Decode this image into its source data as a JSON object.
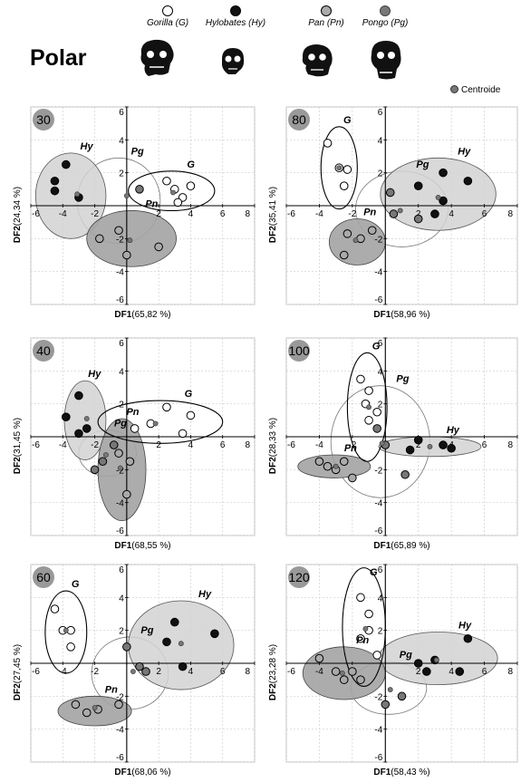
{
  "title": "Polar",
  "legend": {
    "items": [
      {
        "label": "Gorilla (G)",
        "fill": "#ffffff"
      },
      {
        "label": "Hylobates (Hy)",
        "fill": "#111111"
      },
      {
        "label": "Pan (Pn)",
        "fill": "#aaaaaa"
      },
      {
        "label": "Pongo (Pg)",
        "fill": "#777777"
      }
    ],
    "centroid_label": "Centroide"
  },
  "colors": {
    "gorilla": "#ffffff",
    "hylobates": "#111111",
    "pan": "#aaaaaa",
    "pongo": "#777777",
    "hy_ellipse": "#d2d2d2",
    "pn_ellipse": "#a3a3a3",
    "grid": "#cfcfcf"
  },
  "chart_data": [
    {
      "type": "scatter",
      "panel_label": "30",
      "xlim": [
        -6,
        8
      ],
      "ylim": [
        -6,
        6
      ],
      "xticks": [
        "-6",
        "-4",
        "-2",
        "0",
        "2",
        "4",
        "6",
        "8"
      ],
      "yticks": [
        "6",
        "4",
        "2",
        "0",
        "-2",
        "-4",
        "-6"
      ],
      "xlabel": "DF1",
      "xlabel_pct": "(65,82 %)",
      "ylabel": "DF2",
      "ylabel_pct": "(24,34 %)",
      "groups": [
        {
          "label": "Hy",
          "points": [
            [
              -4.5,
              1.5
            ],
            [
              -3.8,
              2.5
            ],
            [
              -3,
              0.5
            ],
            [
              -4.5,
              0.9
            ]
          ]
        },
        {
          "label": "G",
          "points": [
            [
              2.5,
              1.5
            ],
            [
              3,
              1
            ],
            [
              3.5,
              0.5
            ],
            [
              4,
              1.2
            ],
            [
              3.2,
              0.2
            ]
          ]
        },
        {
          "label": "Pn",
          "points": [
            [
              -1.7,
              -2
            ],
            [
              0,
              -3
            ],
            [
              2,
              -2.5
            ],
            [
              -0.5,
              -1.5
            ]
          ]
        },
        {
          "label": "Pg",
          "points": [
            [
              0.8,
              1
            ]
          ]
        }
      ],
      "ellipses": [
        {
          "label": "Hy",
          "center": [
            -3.5,
            0.6
          ],
          "rx": 2.2,
          "ry": 2.6
        },
        {
          "label": "G",
          "center": [
            2.8,
            0.9
          ],
          "rx": 2.7,
          "ry": 1.2
        },
        {
          "label": "Pn",
          "center": [
            0.3,
            -2
          ],
          "rx": 2.8,
          "ry": 1.7
        },
        {
          "label": "Pg",
          "center": [
            -0.5,
            0.3
          ],
          "rx": 2.6,
          "ry": 2.6
        }
      ],
      "centroids": [
        [
          -3.1,
          0.7
        ],
        [
          2.9,
          0.8
        ],
        [
          0.2,
          -2.1
        ],
        [
          0,
          0.6
        ]
      ]
    },
    {
      "type": "scatter",
      "panel_label": "80",
      "xlim": [
        -6,
        8
      ],
      "ylim": [
        -6,
        6
      ],
      "xticks": [
        "-6",
        "-4",
        "-2",
        "0",
        "2",
        "4",
        "6",
        "8"
      ],
      "yticks": [
        "6",
        "4",
        "2",
        "0",
        "-2",
        "-4",
        "-6"
      ],
      "xlabel": "DF1",
      "xlabel_pct": "(58,96 %)",
      "ylabel": "DF2",
      "ylabel_pct": "(35,41 %)",
      "groups": [
        {
          "label": "G",
          "points": [
            [
              -3.5,
              3.8
            ],
            [
              -2.8,
              2.3
            ],
            [
              -2.3,
              2.2
            ],
            [
              -2.5,
              1.2
            ]
          ]
        },
        {
          "label": "Hy",
          "points": [
            [
              2,
              1.2
            ],
            [
              3.5,
              2
            ],
            [
              5,
              1.5
            ],
            [
              3,
              -0.5
            ],
            [
              3.5,
              0.3
            ]
          ]
        },
        {
          "label": "Pn",
          "points": [
            [
              -2.3,
              -1.7
            ],
            [
              -2.5,
              -3
            ],
            [
              -1.5,
              -2
            ],
            [
              -0.8,
              -1.5
            ]
          ]
        },
        {
          "label": "Pg",
          "points": [
            [
              0.5,
              -0.5
            ],
            [
              2,
              -0.8
            ],
            [
              0.3,
              0.8
            ]
          ]
        }
      ],
      "ellipses": [
        {
          "label": "G",
          "center": [
            -2.8,
            2.3
          ],
          "rx": 1.1,
          "ry": 2.5
        },
        {
          "label": "Hy",
          "center": [
            3.2,
            0.7
          ],
          "rx": 3.5,
          "ry": 2.2
        },
        {
          "label": "Pn",
          "center": [
            -1.7,
            -2.2
          ],
          "rx": 1.7,
          "ry": 1.4
        },
        {
          "label": "Pg",
          "center": [
            1,
            -0.2
          ],
          "rx": 2.8,
          "ry": 2.3
        }
      ],
      "centroids": [
        [
          -2.8,
          2.3
        ],
        [
          3.2,
          0.5
        ],
        [
          -1.8,
          -2.1
        ],
        [
          0.9,
          -0.3
        ]
      ]
    },
    {
      "type": "scatter",
      "panel_label": "40",
      "xlim": [
        -6,
        8
      ],
      "ylim": [
        -6,
        6
      ],
      "xticks": [
        "-6",
        "-4",
        "-2",
        "0",
        "2",
        "4",
        "6",
        "8"
      ],
      "yticks": [
        "6",
        "4",
        "2",
        "0",
        "-2",
        "-4",
        "-6"
      ],
      "xlabel": "DF1",
      "xlabel_pct": "(68,55 %)",
      "ylabel": "DF2",
      "ylabel_pct": "(31,45 %)",
      "groups": [
        {
          "label": "Hy",
          "points": [
            [
              -3.8,
              1.2
            ],
            [
              -3,
              2.5
            ],
            [
              -2.5,
              0.5
            ],
            [
              -3,
              0.2
            ]
          ]
        },
        {
          "label": "G",
          "points": [
            [
              2.5,
              1.8
            ],
            [
              4,
              1.3
            ],
            [
              3.5,
              0.2
            ],
            [
              1.5,
              0.8
            ],
            [
              0.5,
              0.5
            ]
          ]
        },
        {
          "label": "Pn",
          "points": [
            [
              0.2,
              -1.5
            ],
            [
              0,
              -3.5
            ],
            [
              -0.5,
              -1
            ]
          ]
        },
        {
          "label": "Pg",
          "points": [
            [
              -1.5,
              -1.5
            ],
            [
              -2,
              -2
            ],
            [
              -0.8,
              -0.5
            ]
          ]
        }
      ],
      "ellipses": [
        {
          "label": "Hy",
          "center": [
            -2.6,
            1
          ],
          "rx": 1.3,
          "ry": 2.4
        },
        {
          "label": "G",
          "center": [
            2.1,
            0.9
          ],
          "rx": 3.9,
          "ry": 1.3
        },
        {
          "label": "Pn",
          "center": [
            -0.3,
            -2
          ],
          "rx": 1.5,
          "ry": 3.1
        },
        {
          "label": "Pg",
          "center": [
            -1.2,
            -1
          ],
          "rx": 1.8,
          "ry": 1.4
        }
      ],
      "centroids": [
        [
          -2.5,
          1.1
        ],
        [
          1.8,
          0.8
        ],
        [
          -0.4,
          -1.9
        ],
        [
          -1.3,
          -1.1
        ]
      ]
    },
    {
      "type": "scatter",
      "panel_label": "100",
      "xlim": [
        -6,
        8
      ],
      "ylim": [
        -6,
        6
      ],
      "xticks": [
        "-6",
        "-4",
        "-2",
        "0",
        "2",
        "4",
        "6",
        "8"
      ],
      "yticks": [
        "6",
        "4",
        "2",
        "0",
        "-2",
        "-4",
        "-6"
      ],
      "xlabel": "DF1",
      "xlabel_pct": "(65,89 %)",
      "ylabel": "DF2",
      "ylabel_pct": "(28,33 %)",
      "groups": [
        {
          "label": "G",
          "points": [
            [
              -1.5,
              3.5
            ],
            [
              -1,
              2.8
            ],
            [
              -1.2,
              2
            ],
            [
              -0.5,
              1.5
            ],
            [
              -1,
              1
            ]
          ]
        },
        {
          "label": "Hy",
          "points": [
            [
              1.5,
              -0.8
            ],
            [
              3.5,
              -0.5
            ],
            [
              4,
              -0.7
            ],
            [
              2,
              -0.2
            ]
          ]
        },
        {
          "label": "Pn",
          "points": [
            [
              -4,
              -1.5
            ],
            [
              -3.5,
              -1.8
            ],
            [
              -3,
              -2
            ],
            [
              -2.5,
              -1.5
            ],
            [
              -2,
              -2.5
            ]
          ]
        },
        {
          "label": "Pg",
          "points": [
            [
              1.2,
              -2.3
            ],
            [
              -0.5,
              0.5
            ],
            [
              0,
              -0.5
            ]
          ]
        }
      ],
      "ellipses": [
        {
          "label": "G",
          "center": [
            -1.1,
            1.8
          ],
          "rx": 1.2,
          "ry": 3.3
        },
        {
          "label": "Hy",
          "center": [
            2.7,
            -0.6
          ],
          "rx": 3.1,
          "ry": 0.6
        },
        {
          "label": "Pn",
          "center": [
            -3.1,
            -1.8
          ],
          "rx": 2.2,
          "ry": 0.7
        },
        {
          "label": "Pg",
          "center": [
            -0.3,
            -0.3
          ],
          "rx": 3,
          "ry": 3.4
        }
      ],
      "centroids": [
        [
          -1,
          1.8
        ],
        [
          2.7,
          -0.6
        ],
        [
          -3,
          -1.8
        ],
        [
          -0.2,
          -0.4
        ]
      ]
    },
    {
      "type": "scatter",
      "panel_label": "60",
      "xlim": [
        -6,
        8
      ],
      "ylim": [
        -6,
        6
      ],
      "xticks": [
        "-6",
        "-4",
        "-2",
        "0",
        "2",
        "4",
        "6",
        "8"
      ],
      "yticks": [
        "6",
        "4",
        "2",
        "0",
        "-2",
        "-4",
        "-6"
      ],
      "xlabel": "DF1",
      "xlabel_pct": "(68,06 %)",
      "ylabel": "DF2",
      "ylabel_pct": "(27,45 %)",
      "groups": [
        {
          "label": "G",
          "points": [
            [
              -4.5,
              3.3
            ],
            [
              -4,
              2
            ],
            [
              -3.5,
              2
            ],
            [
              -3.5,
              1
            ]
          ]
        },
        {
          "label": "Hy",
          "points": [
            [
              3,
              2.5
            ],
            [
              5.5,
              1.8
            ],
            [
              3.5,
              -0.2
            ],
            [
              2.5,
              1.3
            ]
          ]
        },
        {
          "label": "Pn",
          "points": [
            [
              -3.2,
              -2.5
            ],
            [
              -2.5,
              -3
            ],
            [
              -1.8,
              -2.8
            ],
            [
              -0.5,
              -2.5
            ]
          ]
        },
        {
          "label": "Pg",
          "points": [
            [
              0,
              1
            ],
            [
              1.2,
              -0.5
            ],
            [
              0.8,
              -0.2
            ]
          ]
        }
      ],
      "ellipses": [
        {
          "label": "G",
          "center": [
            -3.8,
            1.9
          ],
          "rx": 1.3,
          "ry": 2.5
        },
        {
          "label": "Hy",
          "center": [
            3.4,
            1.1
          ],
          "rx": 3.3,
          "ry": 2.7
        },
        {
          "label": "Pn",
          "center": [
            -2,
            -2.9
          ],
          "rx": 2.3,
          "ry": 0.9
        },
        {
          "label": "Pg",
          "center": [
            0.2,
            -0.6
          ],
          "rx": 2.4,
          "ry": 2.2
        }
      ],
      "centroids": [
        [
          -3.8,
          2
        ],
        [
          3.4,
          1.2
        ],
        [
          -2,
          -2.7
        ],
        [
          0.4,
          -0.5
        ]
      ]
    },
    {
      "type": "scatter",
      "panel_label": "120",
      "xlim": [
        -6,
        8
      ],
      "ylim": [
        -6,
        6
      ],
      "xticks": [
        "-6",
        "-4",
        "-2",
        "0",
        "2",
        "4",
        "6",
        "8"
      ],
      "yticks": [
        "6",
        "4",
        "2",
        "0",
        "-2",
        "-4",
        "-6"
      ],
      "xlabel": "DF1",
      "xlabel_pct": "(58,43 %)",
      "ylabel": "DF2",
      "ylabel_pct": "(23,28 %)",
      "groups": [
        {
          "label": "G",
          "points": [
            [
              -1.5,
              4
            ],
            [
              -1,
              3
            ],
            [
              -1,
              2
            ],
            [
              -1.5,
              1.5
            ],
            [
              -0.5,
              0.5
            ]
          ]
        },
        {
          "label": "Hy",
          "points": [
            [
              2,
              0
            ],
            [
              3,
              0.2
            ],
            [
              4.5,
              -0.5
            ],
            [
              5,
              1.5
            ],
            [
              2.5,
              -0.5
            ]
          ]
        },
        {
          "label": "Pn",
          "points": [
            [
              -4,
              0.3
            ],
            [
              -3,
              -0.5
            ],
            [
              -2.5,
              -1
            ],
            [
              -2,
              -0.5
            ],
            [
              -1.5,
              -1
            ]
          ]
        },
        {
          "label": "Pg",
          "points": [
            [
              0,
              -2.5
            ],
            [
              1,
              -2
            ]
          ]
        }
      ],
      "ellipses": [
        {
          "label": "G",
          "center": [
            -1.3,
            2.2
          ],
          "rx": 1.3,
          "ry": 3.6
        },
        {
          "label": "Hy",
          "center": [
            3.2,
            0.3
          ],
          "rx": 3.6,
          "ry": 1.6
        },
        {
          "label": "Pn",
          "center": [
            -2.5,
            -0.6
          ],
          "rx": 2.5,
          "ry": 1.6
        },
        {
          "label": "Pg",
          "center": [
            0.2,
            -1.5
          ],
          "rx": 2.3,
          "ry": 1.6
        }
      ],
      "centroids": [
        [
          -1.2,
          2.1
        ],
        [
          3.1,
          0.2
        ],
        [
          -2.6,
          -0.6
        ],
        [
          0.3,
          -1.6
        ]
      ]
    }
  ]
}
